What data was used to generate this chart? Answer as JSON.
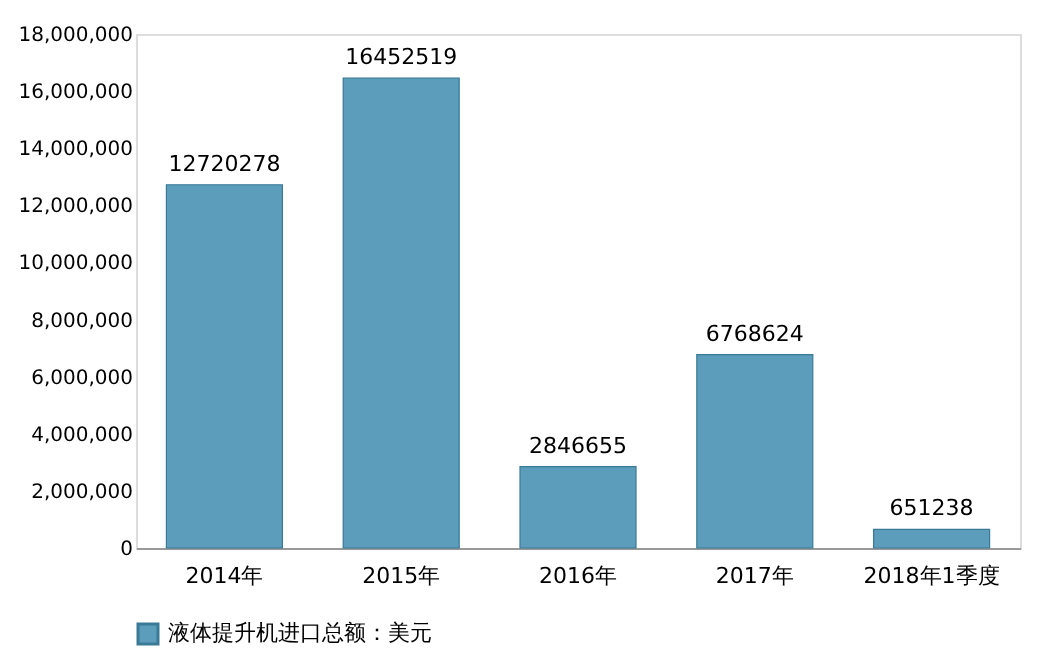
{
  "chart_data": {
    "type": "bar",
    "categories": [
      "2014年",
      "2015年",
      "2016年",
      "2017年",
      "2018年1季度"
    ],
    "series": [
      {
        "name": "液体提升机进口总额：美元",
        "color": "#5b9dbb",
        "values": [
          12720278,
          16452519,
          2846655,
          6768624,
          651238
        ]
      }
    ],
    "ylim": [
      0,
      18000000
    ],
    "yticks": [
      0,
      {
        "value": 2000000,
        "label": "2,000,000"
      },
      {
        "value": 4000000,
        "label": "4,000,000"
      },
      {
        "value": 6000000,
        "label": "6,000,000"
      },
      {
        "value": 8000000,
        "label": "8,000,000"
      },
      {
        "value": 10000000,
        "label": "10,000,000"
      },
      {
        "value": 12000000,
        "label": "12,000,000"
      },
      {
        "value": 14000000,
        "label": "14,000,000"
      },
      {
        "value": 16000000,
        "label": "16,000,000"
      },
      {
        "value": 18000000,
        "label": "18,000,000"
      }
    ],
    "data_labels": true,
    "grid": false,
    "legend": "bottom"
  }
}
